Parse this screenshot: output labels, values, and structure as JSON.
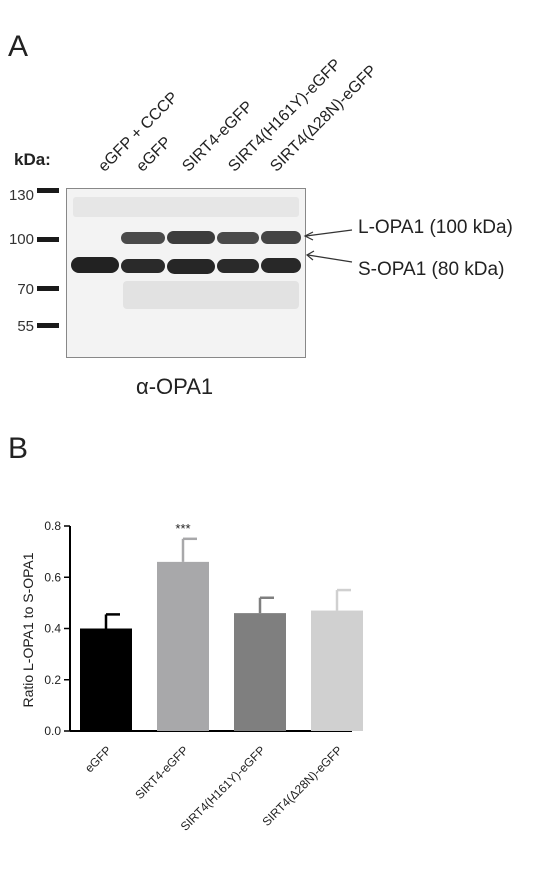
{
  "panel_a": {
    "letter": "A",
    "lane_labels": [
      "eGFP + CCCP",
      "eGFP",
      "SIRT4-eGFP",
      "SIRT4(H161Y)-eGFP",
      "SIRT4(Δ28N)-eGFP"
    ],
    "kda_title": "kDa:",
    "markers": [
      "130",
      "100",
      "70",
      "55"
    ],
    "band_labels": {
      "long": "L-OPA1 (100 kDa)",
      "short": "S-OPA1 (80 kDa)"
    },
    "antibody": "α-OPA1"
  },
  "panel_b": {
    "letter": "B",
    "chart_data": {
      "type": "bar",
      "categories": [
        "eGFP",
        "SIRT4-eGFP",
        "SIRT4(H161Y)-eGFP",
        "SIRT4(Δ28N)-eGFP"
      ],
      "values": [
        0.4,
        0.66,
        0.46,
        0.47
      ],
      "errors": [
        0.055,
        0.09,
        0.06,
        0.08
      ],
      "bar_colors": [
        "#000000",
        "#a8a8aa",
        "#7f7f7f",
        "#d0d0d0"
      ],
      "significance": [
        "",
        "***",
        "",
        ""
      ],
      "ylabel": "Ratio L-OPA1 to  S-OPA1",
      "xlabel": "",
      "ylim": [
        0,
        0.8
      ],
      "yticks": [
        "0.0",
        "0.2",
        "0.4",
        "0.6",
        "0.8"
      ],
      "grid": false
    }
  }
}
